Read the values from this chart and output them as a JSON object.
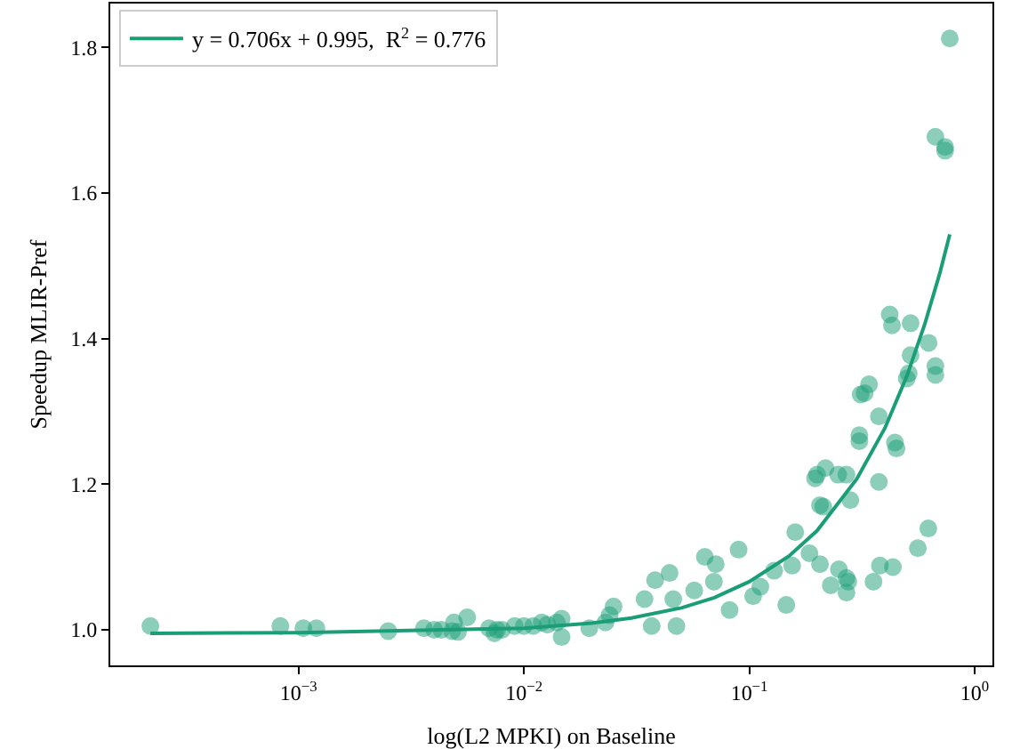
{
  "chart_data": {
    "type": "scatter",
    "xlabel": "log(L2 MPKI) on Baseline",
    "ylabel": "Speedup MLIR-Pref",
    "log": "x",
    "grid": false,
    "legend": "top left",
    "xlim": [
      0.000146,
      1.2
    ],
    "ylim": [
      0.951,
      1.86
    ],
    "xticks": [
      {
        "value": 0.001,
        "label": "10$^{−3}$"
      },
      {
        "value": 0.01,
        "label": "10$^{−2}$"
      },
      {
        "value": 0.1,
        "label": "10$^{−1}$"
      },
      {
        "value": 1,
        "label": "10$^{0}$"
      }
    ],
    "yticks": [
      {
        "value": 1,
        "label": "1.0"
      },
      {
        "value": 1.2,
        "label": "1.2"
      },
      {
        "value": 1.4,
        "label": "1.4"
      },
      {
        "value": 1.6,
        "label": "1.6"
      },
      {
        "value": 1.8,
        "label": "1.8"
      }
    ],
    "series": [
      {
        "marker": "circle",
        "color": "#1b9e77",
        "x": [
          0.00022,
          0.00083,
          0.00105,
          0.0012,
          0.0025,
          0.0036,
          0.004,
          0.0043,
          0.0048,
          0.0049,
          0.0056,
          0.0051,
          0.007,
          0.0074,
          0.0076,
          0.008,
          0.0091,
          0.01,
          0.011,
          0.012,
          0.0127,
          0.014,
          0.0147,
          0.0147,
          0.0195,
          0.024,
          0.025,
          0.023,
          0.0369,
          0.0475,
          0.0343,
          0.0382,
          0.0443,
          0.046,
          0.057,
          0.0635,
          0.071,
          0.0697,
          0.0818,
          0.0897,
          0.104,
          0.112,
          0.129,
          0.146,
          0.155,
          0.16,
          0.185,
          0.206,
          0.196,
          0.2,
          0.218,
          0.206,
          0.213,
          0.248,
          0.27,
          0.281,
          0.23,
          0.25,
          0.27,
          0.275,
          0.27,
          0.356,
          0.38,
          0.434,
          0.56,
          0.623,
          0.376,
          0.308,
          0.308,
          0.376,
          0.312,
          0.325,
          0.34,
          0.443,
          0.45,
          0.52,
          0.51,
          0.5,
          0.625,
          0.67,
          0.67,
          0.42,
          0.43,
          0.52,
          0.776,
          0.67,
          0.74,
          0.74
        ],
        "values": [
          1.005,
          1.005,
          1.002,
          1.002,
          0.998,
          1.002,
          1.0,
          1.0,
          0.998,
          1.01,
          1.017,
          0.997,
          1.002,
          0.995,
          1.0,
          1.0,
          1.005,
          1.005,
          1.005,
          1.01,
          1.007,
          1.01,
          1.015,
          0.99,
          1.002,
          1.02,
          1.032,
          1.01,
          1.005,
          1.005,
          1.042,
          1.068,
          1.078,
          1.042,
          1.054,
          1.1,
          1.09,
          1.066,
          1.027,
          1.11,
          1.046,
          1.059,
          1.081,
          1.034,
          1.088,
          1.134,
          1.105,
          1.09,
          1.208,
          1.213,
          1.222,
          1.171,
          1.169,
          1.213,
          1.213,
          1.178,
          1.061,
          1.083,
          1.071,
          1.066,
          1.051,
          1.066,
          1.088,
          1.086,
          1.112,
          1.139,
          1.203,
          1.267,
          1.259,
          1.293,
          1.323,
          1.325,
          1.337,
          1.257,
          1.249,
          1.377,
          1.352,
          1.345,
          1.394,
          1.362,
          1.35,
          1.433,
          1.418,
          1.421,
          1.812,
          1.677,
          1.663,
          1.658
        ]
      },
      {
        "type": "line",
        "marker": "none",
        "name": "y = 0.706x + 0.995,  R$^{2}$ = 0.776",
        "color": "#1b9e77",
        "x": [
          0.00022,
          0.001,
          0.01,
          0.02,
          0.03,
          0.05,
          0.07,
          0.1,
          0.15,
          0.2,
          0.3,
          0.4,
          0.5,
          0.6,
          0.7,
          0.776
        ],
        "values": [
          0.995,
          0.996,
          1.002,
          1.009,
          1.016,
          1.03,
          1.044,
          1.066,
          1.101,
          1.136,
          1.207,
          1.277,
          1.348,
          1.419,
          1.489,
          1.543
        ]
      }
    ]
  }
}
